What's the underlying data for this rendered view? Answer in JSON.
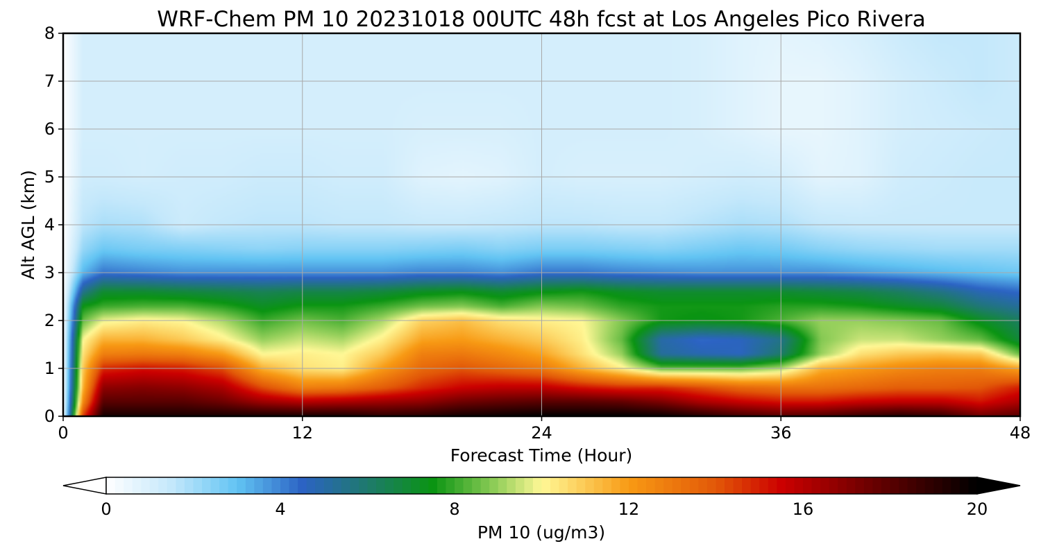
{
  "chart_data": {
    "type": "heatmap",
    "title": "WRF-Chem PM 10  20231018 00UTC 48h fcst at Los Angeles Pico Rivera",
    "xlabel": "Forecast Time (Hour)",
    "ylabel": "Alt AGL (km)",
    "xlim": [
      0,
      48
    ],
    "ylim": [
      0,
      8
    ],
    "x_ticks": [
      0,
      12,
      24,
      36,
      48
    ],
    "y_ticks": [
      0,
      1,
      2,
      3,
      4,
      5,
      6,
      7,
      8
    ],
    "grid": true,
    "colorbar": {
      "label": "PM 10  (ug/m3)",
      "min": 0,
      "max": 20,
      "ticks": [
        0,
        4,
        8,
        12,
        16,
        20
      ],
      "extend": "both",
      "orientation": "horizontal",
      "colors": [
        {
          "value": 0,
          "color": "#ffffff"
        },
        {
          "value": 1.5,
          "color": "#c4e8fb"
        },
        {
          "value": 3,
          "color": "#62c4f3"
        },
        {
          "value": 4.5,
          "color": "#2c63c4"
        },
        {
          "value": 6,
          "color": "#1e7a6c"
        },
        {
          "value": 7.5,
          "color": "#0a9412"
        },
        {
          "value": 9,
          "color": "#96d05c"
        },
        {
          "value": 10,
          "color": "#fff896"
        },
        {
          "value": 12,
          "color": "#f89a14"
        },
        {
          "value": 14,
          "color": "#e25808"
        },
        {
          "value": 15.5,
          "color": "#cc0000"
        },
        {
          "value": 17.5,
          "color": "#6e0000"
        },
        {
          "value": 20,
          "color": "#000000"
        }
      ]
    },
    "layers_km": [
      0,
      0.3,
      0.6,
      1.0,
      1.3,
      1.6,
      2.0,
      2.3,
      2.6,
      3.0,
      3.5,
      4.0,
      5.0,
      6.0,
      7.0,
      8.0
    ],
    "time_hours": [
      0,
      1,
      2,
      4,
      6,
      8,
      10,
      12,
      14,
      16,
      18,
      20,
      22,
      24,
      26,
      28,
      30,
      32,
      34,
      36,
      38,
      40,
      42,
      44,
      46,
      48
    ],
    "values": [
      [
        0,
        14.5,
        19.5,
        19.5,
        19.5,
        19.5,
        19.5,
        19.5,
        19.5,
        19.0,
        19.2,
        19.6,
        19.8,
        20,
        20,
        20,
        19.8,
        19.2,
        18.5,
        18.0,
        18.2,
        18.8,
        19.2,
        18.8,
        17.5,
        18.0
      ],
      [
        0,
        12.5,
        18.0,
        18.0,
        18.0,
        17.5,
        16.5,
        16.0,
        16.2,
        16.5,
        16.8,
        17.5,
        17.8,
        18.0,
        18.0,
        17.8,
        17.2,
        16.2,
        15.6,
        15.2,
        15.2,
        15.6,
        15.8,
        15.8,
        15.2,
        16.2
      ],
      [
        0,
        11.5,
        16.8,
        17.0,
        16.8,
        16.2,
        14.2,
        12.8,
        13.0,
        13.8,
        14.8,
        15.5,
        15.8,
        15.8,
        15.2,
        14.8,
        14.8,
        14.2,
        13.5,
        13.2,
        13.2,
        13.5,
        13.8,
        13.8,
        14.0,
        15.0
      ],
      [
        0,
        11.0,
        14.8,
        15.2,
        15.0,
        14.2,
        11.5,
        10.5,
        10.2,
        12.0,
        13.5,
        14.0,
        13.5,
        13.0,
        11.5,
        10.2,
        8.5,
        8.5,
        8.5,
        9.2,
        11.5,
        12.0,
        12.5,
        12.8,
        12.8,
        11.8
      ],
      [
        0,
        10.5,
        12.8,
        13.0,
        12.8,
        12.0,
        10.0,
        10.2,
        10.0,
        11.0,
        12.8,
        13.0,
        12.5,
        11.8,
        10.5,
        9.0,
        5.2,
        4.8,
        4.6,
        6.0,
        9.0,
        10.5,
        11.0,
        11.2,
        11.0,
        8.5
      ],
      [
        0,
        10.0,
        11.5,
        11.5,
        11.0,
        10.2,
        9.0,
        9.5,
        9.2,
        10.2,
        11.8,
        12.0,
        11.5,
        11.0,
        10.2,
        8.5,
        5.0,
        4.4,
        4.6,
        5.5,
        8.8,
        9.5,
        9.5,
        9.0,
        8.5,
        6.8
      ],
      [
        0,
        8.5,
        9.8,
        10.2,
        10.0,
        9.2,
        8.0,
        8.6,
        8.2,
        9.2,
        10.8,
        11.2,
        10.5,
        10.2,
        10.0,
        8.8,
        7.6,
        7.4,
        7.6,
        8.2,
        9.0,
        9.0,
        8.8,
        8.5,
        7.2,
        6.2
      ],
      [
        0,
        7.5,
        8.0,
        8.2,
        8.2,
        7.8,
        7.2,
        7.6,
        7.6,
        8.0,
        8.6,
        8.8,
        8.2,
        8.8,
        8.6,
        7.9,
        7.6,
        7.6,
        7.6,
        7.8,
        7.8,
        7.6,
        7.2,
        6.8,
        5.8,
        5.2
      ],
      [
        0,
        5.5,
        7.0,
        7.0,
        6.8,
        6.6,
        6.4,
        6.6,
        6.6,
        6.8,
        7.2,
        7.4,
        7.0,
        7.4,
        7.6,
        7.2,
        7.0,
        7.0,
        7.0,
        7.0,
        6.8,
        6.6,
        6.2,
        5.6,
        4.8,
        4.4
      ],
      [
        0,
        3.2,
        4.2,
        4.0,
        3.8,
        3.8,
        3.8,
        3.8,
        3.8,
        3.8,
        4.0,
        4.0,
        3.8,
        4.2,
        4.2,
        4.0,
        3.9,
        3.8,
        3.8,
        3.8,
        3.8,
        3.6,
        3.4,
        3.2,
        3.0,
        2.8
      ],
      [
        0,
        2.2,
        2.8,
        2.6,
        2.5,
        2.4,
        2.3,
        2.4,
        2.4,
        2.4,
        2.5,
        2.6,
        2.4,
        2.6,
        2.6,
        2.5,
        2.4,
        2.6,
        2.8,
        2.7,
        2.4,
        2.2,
        2.1,
        2.0,
        2.0,
        2.0
      ],
      [
        0,
        1.6,
        1.9,
        1.8,
        1.3,
        1.5,
        1.6,
        1.6,
        1.5,
        1.5,
        1.4,
        1.4,
        1.5,
        1.6,
        1.6,
        1.5,
        1.5,
        1.7,
        1.9,
        1.8,
        1.5,
        1.4,
        1.4,
        1.4,
        1.4,
        1.4
      ],
      [
        0,
        1.2,
        1.2,
        1.1,
        1.2,
        1.2,
        1.3,
        1.3,
        1.2,
        1.2,
        0.8,
        0.7,
        0.8,
        1.1,
        1.0,
        1.0,
        1.0,
        1.1,
        1.2,
        1.1,
        0.7,
        0.8,
        1.2,
        1.3,
        1.4,
        1.4
      ],
      [
        0,
        1.1,
        1.1,
        1.1,
        1.1,
        1.1,
        1.1,
        1.1,
        1.1,
        1.1,
        1.0,
        1.0,
        1.0,
        1.1,
        1.1,
        1.1,
        1.1,
        1.0,
        0.8,
        0.6,
        0.6,
        0.8,
        1.1,
        1.2,
        1.3,
        1.4
      ],
      [
        0,
        1.1,
        1.1,
        1.1,
        1.1,
        1.1,
        1.1,
        1.1,
        1.1,
        1.1,
        1.1,
        1.1,
        1.1,
        1.1,
        1.1,
        1.1,
        1.1,
        1.0,
        0.8,
        0.6,
        0.6,
        0.8,
        1.1,
        1.3,
        1.5,
        1.3
      ],
      [
        0,
        1.1,
        1.1,
        1.1,
        1.1,
        1.1,
        1.1,
        1.1,
        1.1,
        1.1,
        1.1,
        1.1,
        1.1,
        1.1,
        1.1,
        1.1,
        1.1,
        1.0,
        0.8,
        0.7,
        0.8,
        1.0,
        1.3,
        1.5,
        1.5,
        1.3
      ]
    ]
  }
}
